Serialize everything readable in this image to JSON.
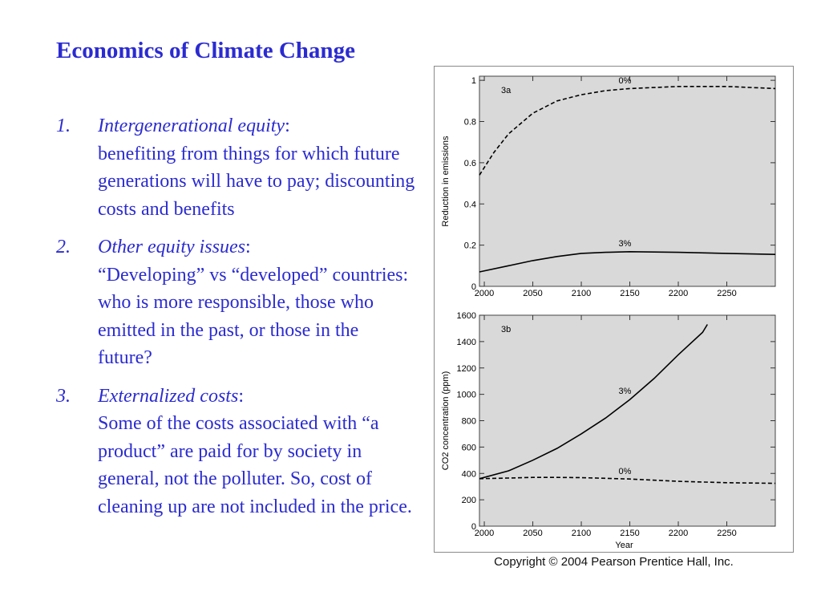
{
  "slide": {
    "title": "Economics of Climate Change",
    "points": [
      {
        "number": "1.",
        "term": "Intergenerational equity",
        "body": "benefiting from things for which future generations will have to pay; discounting costs and benefits"
      },
      {
        "number": "2.",
        "term": "Other equity issues",
        "body": "“Developing” vs “developed” countries: who is more responsible, those who emitted in the past, or those in the future?"
      },
      {
        "number": "3.",
        "term": "Externalized costs",
        "body": "Some of the costs associated with “a product” are paid for by society in general, not the polluter. So, cost of cleaning up are not included in the price."
      }
    ],
    "copyright": "Copyright © 2004 Pearson Prentice Hall, Inc."
  },
  "colors": {
    "text_blue": "#2b2bd1",
    "plot_background": "#d9d9d9",
    "line": "#000000"
  },
  "chart_data": [
    {
      "type": "line",
      "panel_label": "3a",
      "xlabel": "",
      "ylabel": "Reduction in emissions",
      "xlim": [
        1995,
        2300
      ],
      "ylim": [
        0,
        1.02
      ],
      "x_ticks": [
        2000,
        2050,
        2100,
        2150,
        2200,
        2250
      ],
      "y_ticks": [
        0,
        0.2,
        0.4,
        0.6,
        0.8,
        1
      ],
      "y_tick_labels": [
        "0",
        "0.2",
        "0.4",
        "0.6",
        "0.8",
        "1"
      ],
      "series": [
        {
          "name": "0%",
          "style": "dashed",
          "label_at": [
            2145,
            0.985
          ],
          "x": [
            1995,
            2010,
            2025,
            2050,
            2075,
            2100,
            2125,
            2150,
            2200,
            2250,
            2300
          ],
          "y": [
            0.54,
            0.65,
            0.74,
            0.84,
            0.9,
            0.93,
            0.95,
            0.96,
            0.97,
            0.97,
            0.96
          ]
        },
        {
          "name": "3%",
          "style": "solid",
          "label_at": [
            2145,
            0.195
          ],
          "x": [
            1995,
            2025,
            2050,
            2075,
            2100,
            2125,
            2150,
            2200,
            2250,
            2300
          ],
          "y": [
            0.07,
            0.1,
            0.125,
            0.145,
            0.16,
            0.165,
            0.168,
            0.165,
            0.16,
            0.155
          ]
        }
      ]
    },
    {
      "type": "line",
      "panel_label": "3b",
      "xlabel": "Year",
      "ylabel": "CO2 concentration (ppm)",
      "xlim": [
        1995,
        2300
      ],
      "ylim": [
        0,
        1600
      ],
      "x_ticks": [
        2000,
        2050,
        2100,
        2150,
        2200,
        2250
      ],
      "y_ticks": [
        0,
        200,
        400,
        600,
        800,
        1000,
        1200,
        1400,
        1600
      ],
      "series": [
        {
          "name": "3%",
          "style": "solid",
          "label_at": [
            2145,
            1005
          ],
          "x": [
            1995,
            2025,
            2050,
            2075,
            2100,
            2125,
            2150,
            2175,
            2200,
            2225,
            2230
          ],
          "y": [
            360,
            420,
            500,
            590,
            700,
            820,
            960,
            1120,
            1300,
            1470,
            1530
          ]
        },
        {
          "name": "0%",
          "style": "dashed",
          "label_at": [
            2145,
            395
          ],
          "x": [
            1995,
            2025,
            2050,
            2075,
            2100,
            2150,
            2200,
            2250,
            2300
          ],
          "y": [
            360,
            365,
            370,
            370,
            368,
            358,
            340,
            330,
            325
          ]
        }
      ]
    }
  ]
}
